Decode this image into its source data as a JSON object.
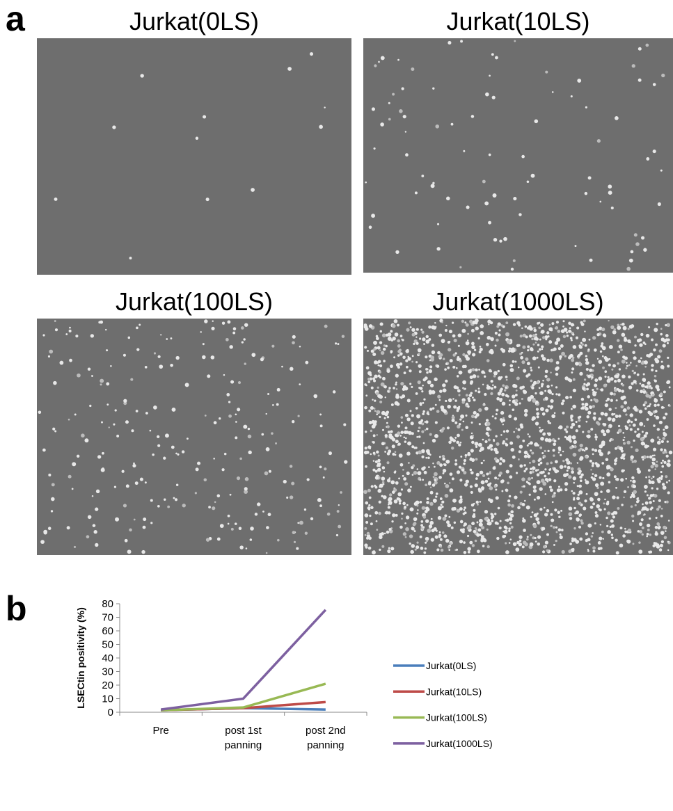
{
  "panel_a": {
    "label": "a",
    "images": [
      {
        "title": "Jurkat(0LS)"
      },
      {
        "title": "Jurkat(10LS)"
      },
      {
        "title": "Jurkat(100LS)"
      },
      {
        "title": "Jurkat(1000LS)"
      }
    ]
  },
  "panel_b": {
    "label": "b"
  },
  "chart_data": {
    "type": "line",
    "y_label": "LSECtin positivity (%)",
    "categories": [
      "Pre",
      "post 1st panning",
      "post 2nd panning"
    ],
    "ylim": [
      0,
      80
    ],
    "yticks": [
      0,
      10,
      20,
      30,
      40,
      50,
      60,
      70,
      80
    ],
    "series": [
      {
        "name": "Jurkat(0LS)",
        "color": "#4a7ebb",
        "values": [
          1.5,
          3,
          2
        ]
      },
      {
        "name": "Jurkat(10LS)",
        "color": "#be4b48",
        "values": [
          1.5,
          3,
          7.5
        ]
      },
      {
        "name": "Jurkat(100LS)",
        "color": "#98b954",
        "values": [
          1.5,
          3.5,
          21
        ]
      },
      {
        "name": "Jurkat(1000LS)",
        "color": "#7d60a0",
        "values": [
          2,
          10,
          75.5
        ]
      }
    ],
    "legend": "right"
  }
}
